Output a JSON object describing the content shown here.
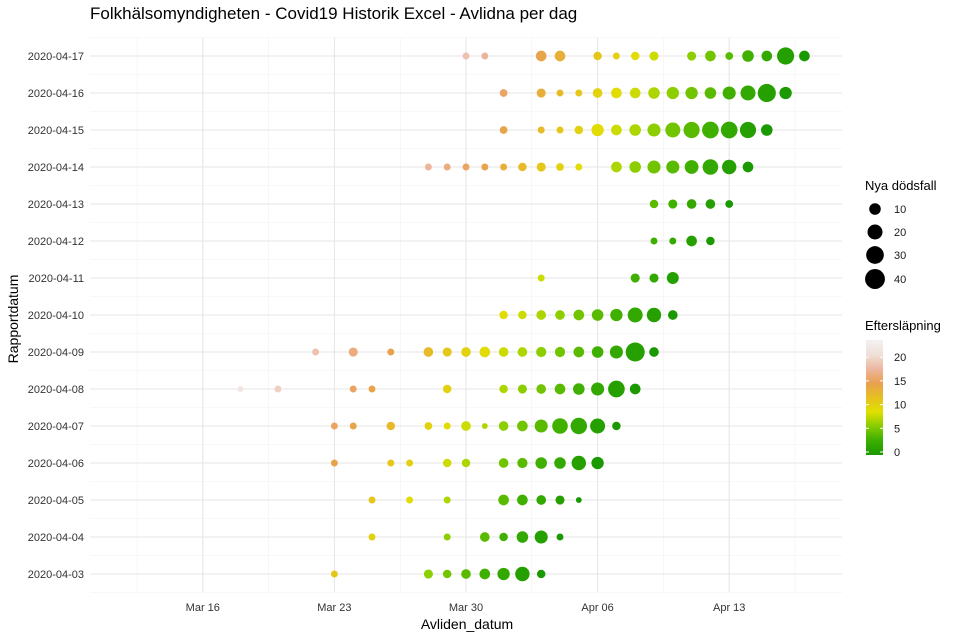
{
  "chart_data": {
    "type": "scatter",
    "title": "Folkhälsomyndigheten - Covid19 Historik Excel - Avlidna per dag",
    "xlabel": "Avliden_datum",
    "ylabel": "Rapportdatum",
    "x_ticks": [
      "Mar 16",
      "Mar 23",
      "Mar 30",
      "Apr 06",
      "Apr 13"
    ],
    "x_tick_dates": [
      "2020-03-16",
      "2020-03-23",
      "2020-03-30",
      "2020-04-06",
      "2020-04-13"
    ],
    "xlim": [
      "2020-03-10",
      "2020-04-19"
    ],
    "categories": [
      "2020-04-03",
      "2020-04-04",
      "2020-04-05",
      "2020-04-06",
      "2020-04-07",
      "2020-04-08",
      "2020-04-09",
      "2020-04-10",
      "2020-04-11",
      "2020-04-12",
      "2020-04-13",
      "2020-04-14",
      "2020-04-15",
      "2020-04-16",
      "2020-04-17"
    ],
    "grid": true,
    "size_legend": {
      "title": "Nya dödsfall",
      "values": [
        10,
        20,
        30,
        40
      ]
    },
    "color_legend": {
      "title": "Eftersläpning",
      "ticks": [
        0,
        5,
        10,
        15,
        20
      ],
      "range": [
        0,
        23
      ],
      "colors": [
        "#1a9900",
        "#3cae00",
        "#85cc00",
        "#e0e000",
        "#e6c020",
        "#e8a050",
        "#edb7a0",
        "#f0e0d8",
        "#f2f2f2"
      ]
    },
    "points": [
      {
        "date": "2020-04-03",
        "report": "2020-04-03",
        "deaths": 1
      },
      {
        "date": "2020-03-23",
        "report": "2020-04-03",
        "deaths": 2
      },
      {
        "date": "2020-03-28",
        "report": "2020-04-03",
        "deaths": 5
      },
      {
        "date": "2020-03-29",
        "report": "2020-04-03",
        "deaths": 4
      },
      {
        "date": "2020-03-30",
        "report": "2020-04-03",
        "deaths": 6
      },
      {
        "date": "2020-03-31",
        "report": "2020-04-03",
        "deaths": 8
      },
      {
        "date": "2020-04-01",
        "report": "2020-04-03",
        "deaths": 12
      },
      {
        "date": "2020-04-02",
        "report": "2020-04-03",
        "deaths": 18
      },
      {
        "date": "2020-04-03",
        "report": "2020-04-03",
        "deaths": 4
      },
      {
        "date": "2020-03-25",
        "report": "2020-04-04",
        "deaths": 2
      },
      {
        "date": "2020-03-29",
        "report": "2020-04-04",
        "deaths": 2
      },
      {
        "date": "2020-03-31",
        "report": "2020-04-04",
        "deaths": 6
      },
      {
        "date": "2020-04-01",
        "report": "2020-04-04",
        "deaths": 4
      },
      {
        "date": "2020-04-02",
        "report": "2020-04-04",
        "deaths": 10
      },
      {
        "date": "2020-04-03",
        "report": "2020-04-04",
        "deaths": 14
      },
      {
        "date": "2020-04-04",
        "report": "2020-04-04",
        "deaths": 2
      },
      {
        "date": "2020-03-25",
        "report": "2020-04-05",
        "deaths": 2
      },
      {
        "date": "2020-03-27",
        "report": "2020-04-05",
        "deaths": 2
      },
      {
        "date": "2020-03-29",
        "report": "2020-04-05",
        "deaths": 2
      },
      {
        "date": "2020-04-01",
        "report": "2020-04-05",
        "deaths": 8
      },
      {
        "date": "2020-04-02",
        "report": "2020-04-05",
        "deaths": 8
      },
      {
        "date": "2020-04-03",
        "report": "2020-04-05",
        "deaths": 6
      },
      {
        "date": "2020-04-04",
        "report": "2020-04-05",
        "deaths": 5
      },
      {
        "date": "2020-04-05",
        "report": "2020-04-05",
        "deaths": 1
      },
      {
        "date": "2020-03-23",
        "report": "2020-04-06",
        "deaths": 2
      },
      {
        "date": "2020-03-26",
        "report": "2020-04-06",
        "deaths": 2
      },
      {
        "date": "2020-03-27",
        "report": "2020-04-06",
        "deaths": 2
      },
      {
        "date": "2020-03-29",
        "report": "2020-04-06",
        "deaths": 4
      },
      {
        "date": "2020-03-30",
        "report": "2020-04-06",
        "deaths": 4
      },
      {
        "date": "2020-04-01",
        "report": "2020-04-06",
        "deaths": 6
      },
      {
        "date": "2020-04-02",
        "report": "2020-04-06",
        "deaths": 7
      },
      {
        "date": "2020-04-03",
        "report": "2020-04-06",
        "deaths": 10
      },
      {
        "date": "2020-04-04",
        "report": "2020-04-06",
        "deaths": 10
      },
      {
        "date": "2020-04-05",
        "report": "2020-04-06",
        "deaths": 18
      },
      {
        "date": "2020-04-06",
        "report": "2020-04-06",
        "deaths": 12
      },
      {
        "date": "2020-03-23",
        "report": "2020-04-07",
        "deaths": 2
      },
      {
        "date": "2020-03-24",
        "report": "2020-04-07",
        "deaths": 2
      },
      {
        "date": "2020-03-26",
        "report": "2020-04-07",
        "deaths": 4
      },
      {
        "date": "2020-03-28",
        "report": "2020-04-07",
        "deaths": 3
      },
      {
        "date": "2020-03-29",
        "report": "2020-04-07",
        "deaths": 2
      },
      {
        "date": "2020-03-30",
        "report": "2020-04-07",
        "deaths": 6
      },
      {
        "date": "2020-03-31",
        "report": "2020-04-07",
        "deaths": 1
      },
      {
        "date": "2020-04-01",
        "report": "2020-04-07",
        "deaths": 6
      },
      {
        "date": "2020-04-02",
        "report": "2020-04-07",
        "deaths": 8
      },
      {
        "date": "2020-04-03",
        "report": "2020-04-07",
        "deaths": 14
      },
      {
        "date": "2020-04-04",
        "report": "2020-04-07",
        "deaths": 22
      },
      {
        "date": "2020-04-05",
        "report": "2020-04-07",
        "deaths": 25
      },
      {
        "date": "2020-04-06",
        "report": "2020-04-07",
        "deaths": 20
      },
      {
        "date": "2020-04-07",
        "report": "2020-04-07",
        "deaths": 4
      },
      {
        "date": "2020-03-18",
        "report": "2020-04-08",
        "deaths": 1
      },
      {
        "date": "2020-03-20",
        "report": "2020-04-08",
        "deaths": 2
      },
      {
        "date": "2020-03-24",
        "report": "2020-04-08",
        "deaths": 2
      },
      {
        "date": "2020-03-25",
        "report": "2020-04-08",
        "deaths": 2
      },
      {
        "date": "2020-03-29",
        "report": "2020-04-08",
        "deaths": 4
      },
      {
        "date": "2020-04-01",
        "report": "2020-04-08",
        "deaths": 4
      },
      {
        "date": "2020-04-02",
        "report": "2020-04-08",
        "deaths": 5
      },
      {
        "date": "2020-04-03",
        "report": "2020-04-08",
        "deaths": 6
      },
      {
        "date": "2020-04-04",
        "report": "2020-04-08",
        "deaths": 8
      },
      {
        "date": "2020-04-05",
        "report": "2020-04-08",
        "deaths": 10
      },
      {
        "date": "2020-04-06",
        "report": "2020-04-08",
        "deaths": 14
      },
      {
        "date": "2020-04-07",
        "report": "2020-04-08",
        "deaths": 26
      },
      {
        "date": "2020-04-08",
        "report": "2020-04-08",
        "deaths": 8
      },
      {
        "date": "2020-03-22",
        "report": "2020-04-09",
        "deaths": 2
      },
      {
        "date": "2020-03-24",
        "report": "2020-04-09",
        "deaths": 5
      },
      {
        "date": "2020-03-26",
        "report": "2020-04-09",
        "deaths": 2
      },
      {
        "date": "2020-03-28",
        "report": "2020-04-09",
        "deaths": 6
      },
      {
        "date": "2020-03-29",
        "report": "2020-04-09",
        "deaths": 5
      },
      {
        "date": "2020-03-30",
        "report": "2020-04-09",
        "deaths": 6
      },
      {
        "date": "2020-03-31",
        "report": "2020-04-09",
        "deaths": 8
      },
      {
        "date": "2020-04-01",
        "report": "2020-04-09",
        "deaths": 6
      },
      {
        "date": "2020-04-02",
        "report": "2020-04-09",
        "deaths": 6
      },
      {
        "date": "2020-04-03",
        "report": "2020-04-09",
        "deaths": 7
      },
      {
        "date": "2020-04-04",
        "report": "2020-04-09",
        "deaths": 7
      },
      {
        "date": "2020-04-05",
        "report": "2020-04-09",
        "deaths": 8
      },
      {
        "date": "2020-04-06",
        "report": "2020-04-09",
        "deaths": 10
      },
      {
        "date": "2020-04-07",
        "report": "2020-04-09",
        "deaths": 14
      },
      {
        "date": "2020-04-08",
        "report": "2020-04-09",
        "deaths": 36
      },
      {
        "date": "2020-04-09",
        "report": "2020-04-09",
        "deaths": 6
      },
      {
        "date": "2020-04-01",
        "report": "2020-04-10",
        "deaths": 4
      },
      {
        "date": "2020-04-02",
        "report": "2020-04-10",
        "deaths": 4
      },
      {
        "date": "2020-04-03",
        "report": "2020-04-10",
        "deaths": 6
      },
      {
        "date": "2020-04-04",
        "report": "2020-04-10",
        "deaths": 6
      },
      {
        "date": "2020-04-05",
        "report": "2020-04-10",
        "deaths": 8
      },
      {
        "date": "2020-04-06",
        "report": "2020-04-10",
        "deaths": 10
      },
      {
        "date": "2020-04-07",
        "report": "2020-04-10",
        "deaths": 12
      },
      {
        "date": "2020-04-08",
        "report": "2020-04-10",
        "deaths": 20
      },
      {
        "date": "2020-04-09",
        "report": "2020-04-10",
        "deaths": 18
      },
      {
        "date": "2020-04-10",
        "report": "2020-04-10",
        "deaths": 6
      },
      {
        "date": "2020-04-03",
        "report": "2020-04-11",
        "deaths": 2
      },
      {
        "date": "2020-04-08",
        "report": "2020-04-11",
        "deaths": 5
      },
      {
        "date": "2020-04-09",
        "report": "2020-04-11",
        "deaths": 5
      },
      {
        "date": "2020-04-10",
        "report": "2020-04-11",
        "deaths": 11
      },
      {
        "date": "2020-04-09",
        "report": "2020-04-12",
        "deaths": 2
      },
      {
        "date": "2020-04-10",
        "report": "2020-04-12",
        "deaths": 2
      },
      {
        "date": "2020-04-11",
        "report": "2020-04-12",
        "deaths": 8
      },
      {
        "date": "2020-04-12",
        "report": "2020-04-12",
        "deaths": 4
      },
      {
        "date": "2020-04-09",
        "report": "2020-04-13",
        "deaths": 4
      },
      {
        "date": "2020-04-10",
        "report": "2020-04-13",
        "deaths": 5
      },
      {
        "date": "2020-04-11",
        "report": "2020-04-13",
        "deaths": 6
      },
      {
        "date": "2020-04-12",
        "report": "2020-04-13",
        "deaths": 6
      },
      {
        "date": "2020-04-13",
        "report": "2020-04-13",
        "deaths": 3
      },
      {
        "date": "2020-03-28",
        "report": "2020-04-14",
        "deaths": 2
      },
      {
        "date": "2020-03-29",
        "report": "2020-04-14",
        "deaths": 2
      },
      {
        "date": "2020-03-30",
        "report": "2020-04-14",
        "deaths": 2
      },
      {
        "date": "2020-03-31",
        "report": "2020-04-14",
        "deaths": 2
      },
      {
        "date": "2020-04-01",
        "report": "2020-04-14",
        "deaths": 2
      },
      {
        "date": "2020-04-02",
        "report": "2020-04-14",
        "deaths": 4
      },
      {
        "date": "2020-04-03",
        "report": "2020-04-14",
        "deaths": 5
      },
      {
        "date": "2020-04-04",
        "report": "2020-04-14",
        "deaths": 3
      },
      {
        "date": "2020-04-05",
        "report": "2020-04-14",
        "deaths": 2
      },
      {
        "date": "2020-04-07",
        "report": "2020-04-14",
        "deaths": 8
      },
      {
        "date": "2020-04-08",
        "report": "2020-04-14",
        "deaths": 10
      },
      {
        "date": "2020-04-09",
        "report": "2020-04-14",
        "deaths": 14
      },
      {
        "date": "2020-04-10",
        "report": "2020-04-14",
        "deaths": 14
      },
      {
        "date": "2020-04-11",
        "report": "2020-04-14",
        "deaths": 16
      },
      {
        "date": "2020-04-12",
        "report": "2020-04-14",
        "deaths": 22
      },
      {
        "date": "2020-04-13",
        "report": "2020-04-14",
        "deaths": 18
      },
      {
        "date": "2020-04-14",
        "report": "2020-04-14",
        "deaths": 8
      },
      {
        "date": "2020-04-01",
        "report": "2020-04-15",
        "deaths": 3
      },
      {
        "date": "2020-04-03",
        "report": "2020-04-15",
        "deaths": 2
      },
      {
        "date": "2020-04-04",
        "report": "2020-04-15",
        "deaths": 2
      },
      {
        "date": "2020-04-05",
        "report": "2020-04-15",
        "deaths": 4
      },
      {
        "date": "2020-04-06",
        "report": "2020-04-15",
        "deaths": 12
      },
      {
        "date": "2020-04-07",
        "report": "2020-04-15",
        "deaths": 8
      },
      {
        "date": "2020-04-08",
        "report": "2020-04-15",
        "deaths": 10
      },
      {
        "date": "2020-04-09",
        "report": "2020-04-15",
        "deaths": 14
      },
      {
        "date": "2020-04-10",
        "report": "2020-04-15",
        "deaths": 20
      },
      {
        "date": "2020-04-11",
        "report": "2020-04-15",
        "deaths": 24
      },
      {
        "date": "2020-04-12",
        "report": "2020-04-15",
        "deaths": 26
      },
      {
        "date": "2020-04-13",
        "report": "2020-04-15",
        "deaths": 26
      },
      {
        "date": "2020-04-14",
        "report": "2020-04-15",
        "deaths": 24
      },
      {
        "date": "2020-04-15",
        "report": "2020-04-15",
        "deaths": 10
      },
      {
        "date": "2020-04-01",
        "report": "2020-04-16",
        "deaths": 3
      },
      {
        "date": "2020-04-03",
        "report": "2020-04-16",
        "deaths": 5
      },
      {
        "date": "2020-04-04",
        "report": "2020-04-16",
        "deaths": 2
      },
      {
        "date": "2020-04-05",
        "report": "2020-04-16",
        "deaths": 2
      },
      {
        "date": "2020-04-06",
        "report": "2020-04-16",
        "deaths": 6
      },
      {
        "date": "2020-04-07",
        "report": "2020-04-16",
        "deaths": 8
      },
      {
        "date": "2020-04-08",
        "report": "2020-04-16",
        "deaths": 8
      },
      {
        "date": "2020-04-09",
        "report": "2020-04-16",
        "deaths": 10
      },
      {
        "date": "2020-04-10",
        "report": "2020-04-16",
        "deaths": 12
      },
      {
        "date": "2020-04-11",
        "report": "2020-04-16",
        "deaths": 12
      },
      {
        "date": "2020-04-12",
        "report": "2020-04-16",
        "deaths": 10
      },
      {
        "date": "2020-04-13",
        "report": "2020-04-16",
        "deaths": 14
      },
      {
        "date": "2020-04-14",
        "report": "2020-04-16",
        "deaths": 20
      },
      {
        "date": "2020-04-15",
        "report": "2020-04-16",
        "deaths": 32
      },
      {
        "date": "2020-04-16",
        "report": "2020-04-16",
        "deaths": 12
      },
      {
        "date": "2020-03-30",
        "report": "2020-04-17",
        "deaths": 2
      },
      {
        "date": "2020-03-31",
        "report": "2020-04-17",
        "deaths": 2
      },
      {
        "date": "2020-04-03",
        "report": "2020-04-17",
        "deaths": 8
      },
      {
        "date": "2020-04-04",
        "report": "2020-04-17",
        "deaths": 8
      },
      {
        "date": "2020-04-06",
        "report": "2020-04-17",
        "deaths": 4
      },
      {
        "date": "2020-04-07",
        "report": "2020-04-17",
        "deaths": 2
      },
      {
        "date": "2020-04-08",
        "report": "2020-04-17",
        "deaths": 4
      },
      {
        "date": "2020-04-09",
        "report": "2020-04-17",
        "deaths": 5
      },
      {
        "date": "2020-04-11",
        "report": "2020-04-17",
        "deaths": 5
      },
      {
        "date": "2020-04-12",
        "report": "2020-04-17",
        "deaths": 8
      },
      {
        "date": "2020-04-13",
        "report": "2020-04-17",
        "deaths": 3
      },
      {
        "date": "2020-04-14",
        "report": "2020-04-17",
        "deaths": 10
      },
      {
        "date": "2020-04-15",
        "report": "2020-04-17",
        "deaths": 8
      },
      {
        "date": "2020-04-16",
        "report": "2020-04-17",
        "deaths": 28
      },
      {
        "date": "2020-04-17",
        "report": "2020-04-17",
        "deaths": 8
      }
    ]
  }
}
